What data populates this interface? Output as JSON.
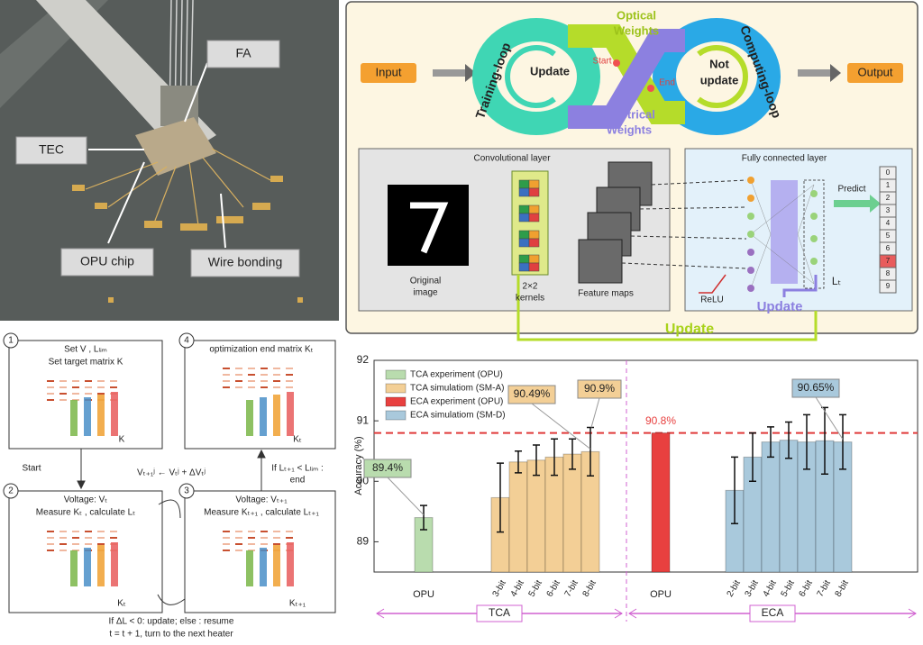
{
  "photo": {
    "labels": [
      "FA",
      "TEC",
      "OPU chip",
      "Wire bonding"
    ]
  },
  "loop": {
    "input": "Input",
    "output": "Output",
    "training": "Training-loop",
    "computing": "Computing-loop",
    "optical": [
      "Optical",
      "Weights"
    ],
    "electrical": [
      "Electrical",
      "Weights"
    ],
    "update": "Update",
    "not_update": [
      "Not",
      "update"
    ],
    "start": "Start",
    "end": "End"
  },
  "network": {
    "conv_title": "Convolutional layer",
    "original": [
      "Original",
      "image"
    ],
    "kernels": [
      "2×2",
      "kernels"
    ],
    "feature_maps": "Feature maps",
    "fc_title": "Fully connected layer",
    "predict": "Predict",
    "relu": "ReLU",
    "fc_update": "Update",
    "loss": "Lₜ",
    "digits": [
      "0",
      "1",
      "2",
      "3",
      "4",
      "5",
      "6",
      "7",
      "8",
      "9"
    ],
    "update": "Update"
  },
  "flow": {
    "steps": [
      {
        "num": "1",
        "lines": [
          "Set V , Lₗᵢₘ",
          "Set target matrix K"
        ],
        "matrix": "K"
      },
      {
        "num": "2",
        "lines": [
          "Voltage: Vₜ",
          "Measure Kₜ , calculate Lₜ"
        ],
        "matrix": "Kₜ"
      },
      {
        "num": "3",
        "lines": [
          "Voltage: Vₜ₊₁",
          "Measure Kₜ₊₁ , calculate Lₜ₊₁"
        ],
        "matrix": "Kₜ₊₁"
      },
      {
        "num": "4",
        "lines": [
          "optimization end matrix Kₜ"
        ],
        "matrix": "Kₜ"
      }
    ],
    "start": "Start",
    "update_rule": "Vₜ₊₁ʲ ← Vₜʲ + ΔVₜʲ",
    "end_rule": [
      "If Lₜ₊₁ < Lₗᵢₘ :",
      "end"
    ],
    "loop_rule": [
      "If ΔL < 0: update; else : resume",
      "t = t + 1, turn to the next heater"
    ]
  },
  "chart_data": {
    "type": "bar",
    "ylabel": "Accuracy (%)",
    "ylim": [
      88.5,
      92
    ],
    "yticks": [
      89,
      90,
      91,
      92
    ],
    "categories": [
      "OPU",
      "3-bit",
      "4-bit",
      "5-bit",
      "6-bit",
      "7-bit",
      "8-bit",
      "OPU",
      "2-bit",
      "3-bit",
      "4-bit",
      "5-bit",
      "6-bit",
      "7-bit",
      "8-bit"
    ],
    "series": [
      {
        "name": "TCA experiment (OPU)",
        "color": "#b9dcae",
        "values": [
          89.4,
          null,
          null,
          null,
          null,
          null,
          null,
          null,
          null,
          null,
          null,
          null,
          null,
          null,
          null
        ],
        "errors": [
          0.2,
          null,
          null,
          null,
          null,
          null,
          null,
          null,
          null,
          null,
          null,
          null,
          null,
          null,
          null
        ],
        "value_labels": [
          "89.4%",
          null,
          null,
          null,
          null,
          null,
          null,
          null,
          null,
          null,
          null,
          null,
          null,
          null,
          null
        ]
      },
      {
        "name": "TCA simulatiom (SM-A)",
        "color": "#f3cf96",
        "values": [
          null,
          89.73,
          90.32,
          90.35,
          90.4,
          90.45,
          90.49,
          null,
          null,
          null,
          null,
          null,
          null,
          null,
          null
        ],
        "errors": [
          null,
          0.57,
          0.18,
          0.25,
          0.3,
          0.25,
          0.4,
          null,
          null,
          null,
          null,
          null,
          null,
          null,
          null
        ],
        "value_labels": [
          null,
          null,
          null,
          null,
          null,
          null,
          "90.49%",
          null,
          null,
          null,
          null,
          null,
          null,
          null,
          null
        ]
      },
      {
        "name": "ECA experiment (OPU)",
        "color": "#e8403f",
        "values": [
          null,
          null,
          null,
          null,
          null,
          null,
          null,
          90.8,
          null,
          null,
          null,
          null,
          null,
          null,
          null
        ],
        "value_labels": [
          null,
          null,
          null,
          null,
          null,
          null,
          null,
          "90.8%",
          null,
          null,
          null,
          null,
          null,
          null,
          null
        ]
      },
      {
        "name": "ECA simulatiom (SM-D)",
        "color": "#a9c9dc",
        "values": [
          null,
          null,
          null,
          null,
          null,
          null,
          null,
          null,
          89.85,
          90.4,
          90.65,
          90.68,
          90.65,
          90.67,
          90.65
        ],
        "errors": [
          null,
          null,
          null,
          null,
          null,
          null,
          null,
          null,
          0.55,
          0.4,
          0.25,
          0.3,
          0.45,
          0.55,
          0.45
        ],
        "value_labels": [
          null,
          null,
          null,
          null,
          null,
          null,
          null,
          null,
          null,
          null,
          null,
          null,
          null,
          null,
          "90.65%"
        ]
      }
    ],
    "annotations": [
      {
        "text": "90.9%"
      }
    ],
    "reference_line": {
      "value": 90.8,
      "color": "#e03a3a"
    },
    "groups": [
      {
        "name": "TCA"
      },
      {
        "name": "ECA"
      }
    ]
  }
}
